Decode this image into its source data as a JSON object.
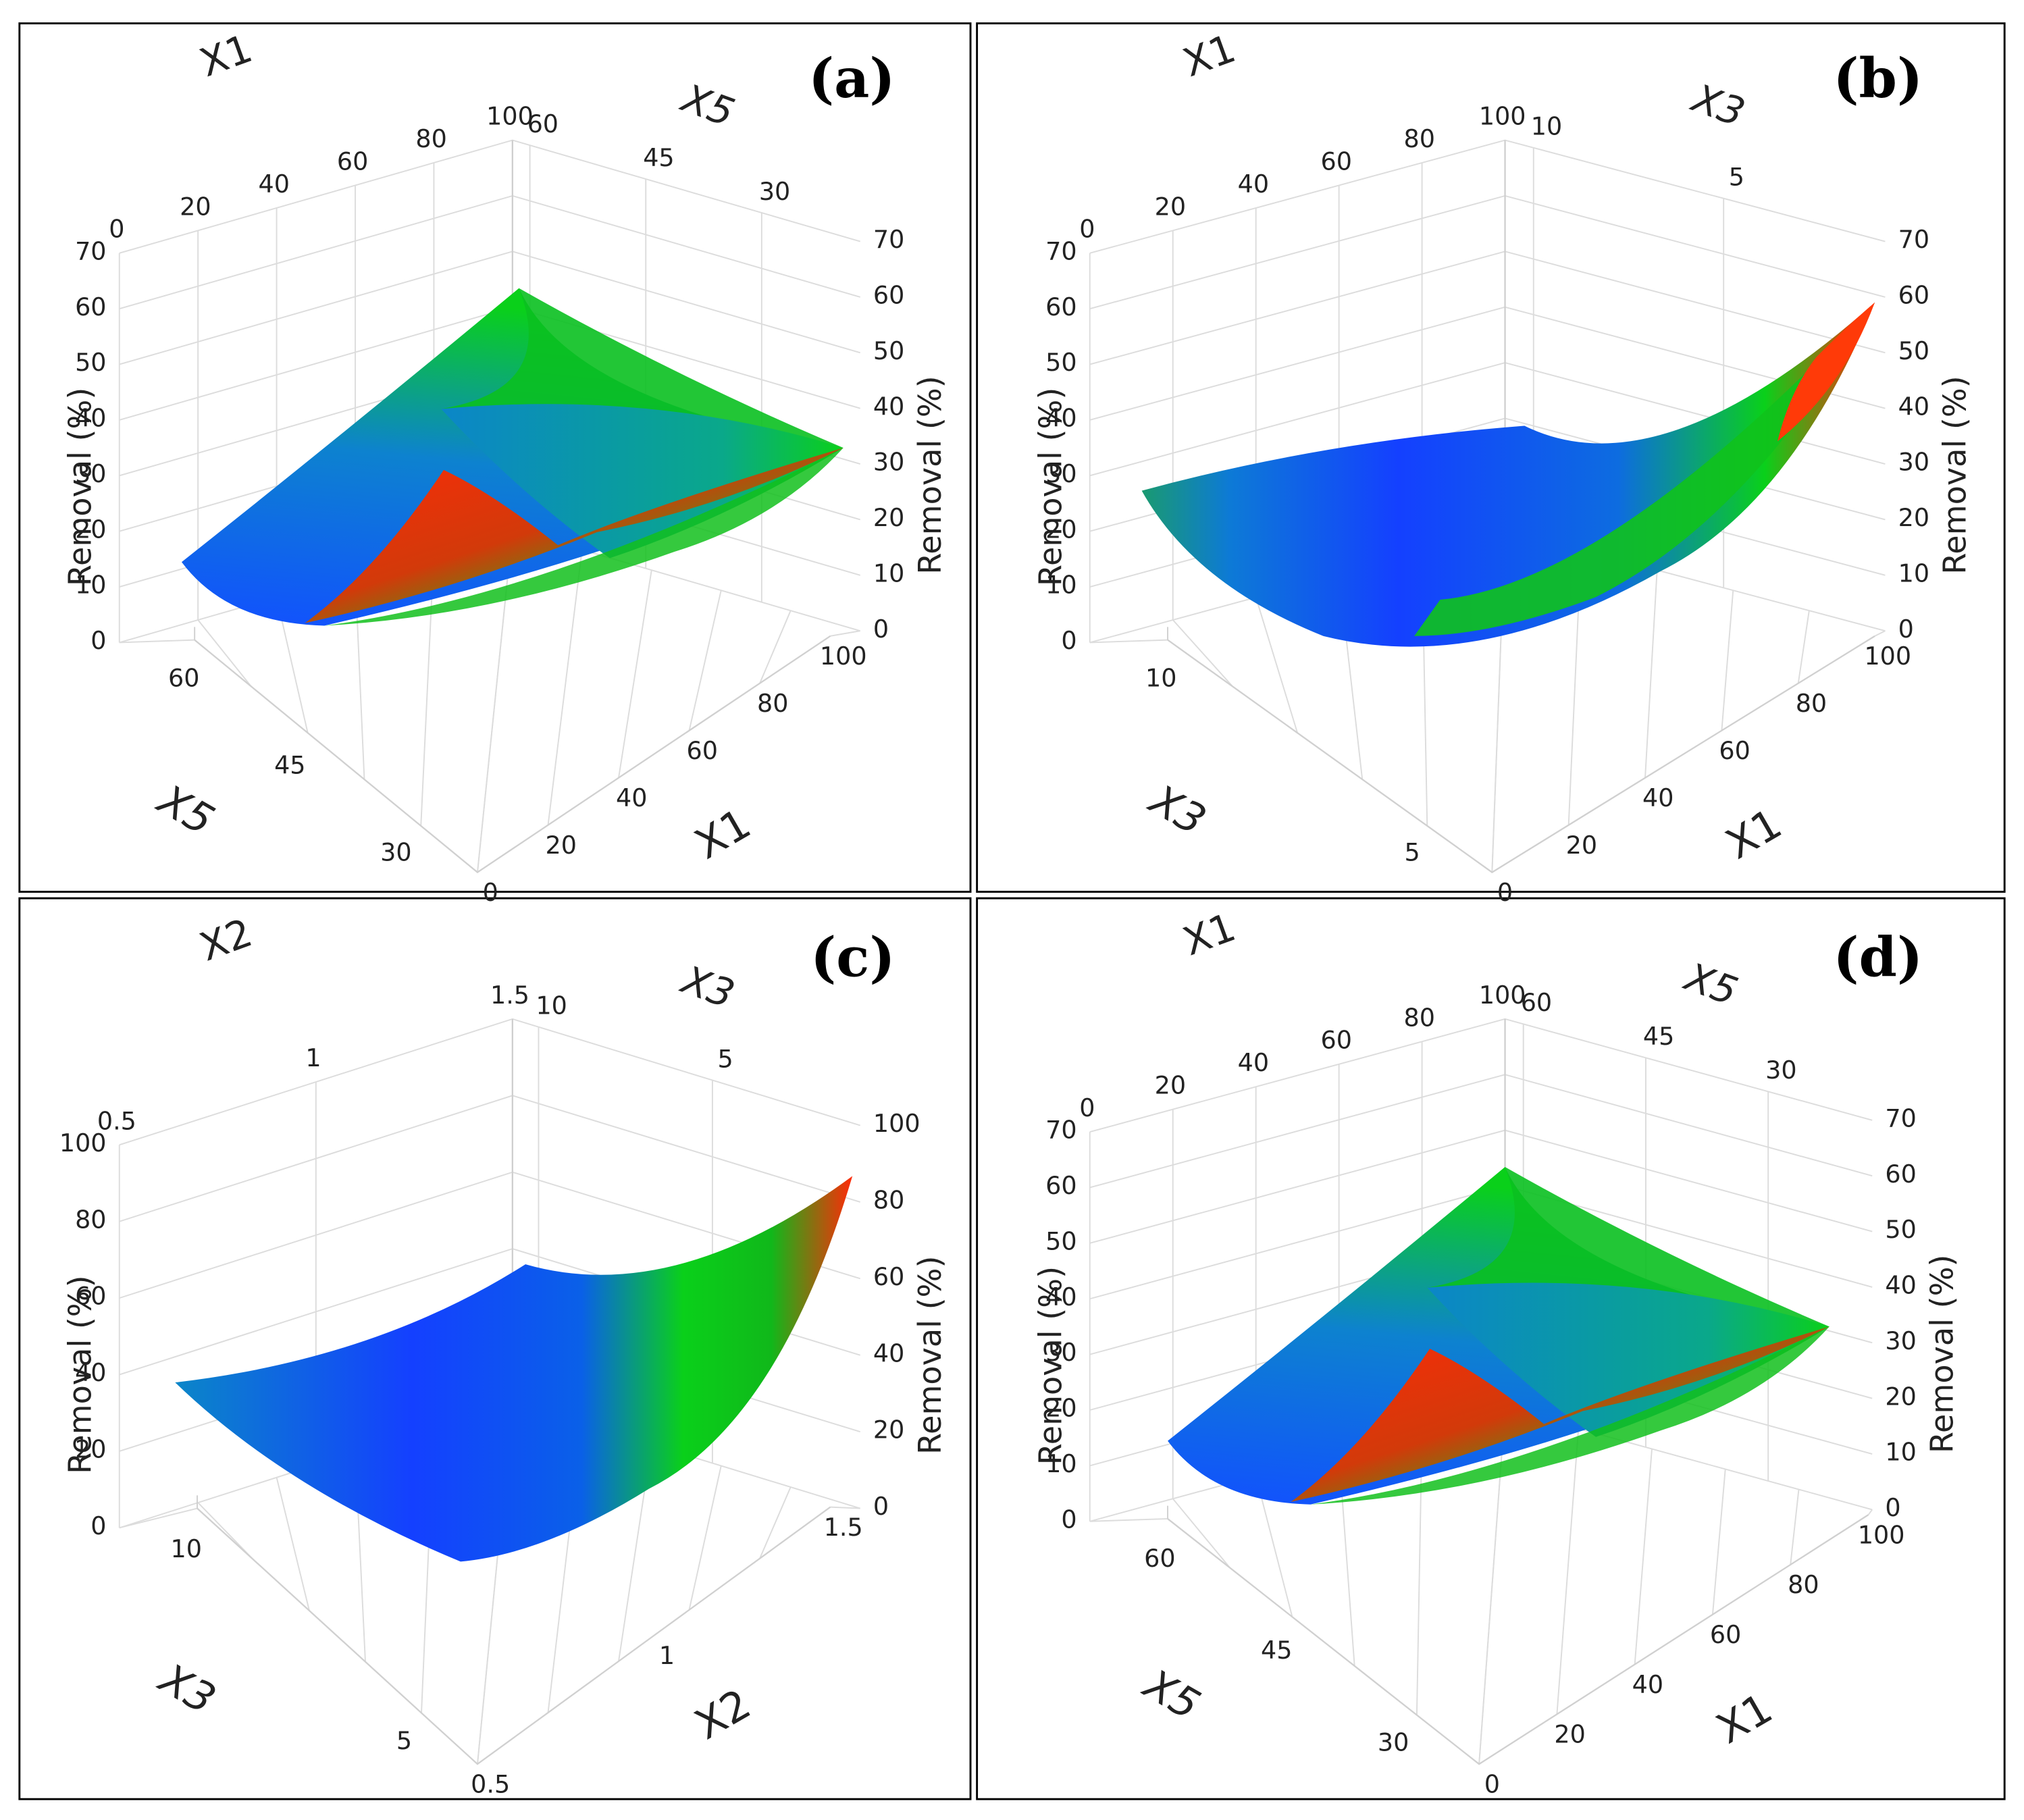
{
  "chart_data": [
    {
      "type": "surface3d",
      "label": "(a)",
      "front_x": {
        "title": "X1",
        "ticks": [
          "0",
          "20",
          "40",
          "60",
          "80",
          "100"
        ]
      },
      "front_y": {
        "title": "X5",
        "ticks": [
          "30",
          "45",
          "60"
        ]
      },
      "back_x": {
        "title": "X1",
        "ticks": [
          "0",
          "20",
          "40",
          "60",
          "80",
          "100"
        ]
      },
      "back_y": {
        "title": "X5",
        "ticks": [
          "60",
          "45",
          "30"
        ]
      },
      "z_left": {
        "title": "Removal (%)",
        "ticks": [
          "0",
          "10",
          "20",
          "30",
          "40",
          "50",
          "60",
          "70"
        ],
        "range": [
          0,
          70
        ]
      },
      "z_right": {
        "title": "Removal (%)",
        "ticks": [
          "0",
          "10",
          "20",
          "30",
          "40",
          "50",
          "60",
          "70"
        ],
        "range": [
          0,
          70
        ]
      },
      "corner_removal": {
        "x_min_y_min": 12,
        "x_min_y_max": 58,
        "x_max_y_min": 39,
        "x_max_y_max": 40,
        "min": 0
      },
      "highlight_peak": 37,
      "colorscale": [
        "#1440ff",
        "#0a7ad6",
        "#0ad01a",
        "#ff2a08"
      ]
    },
    {
      "type": "surface3d",
      "label": "(b)",
      "front_x": {
        "title": "X1",
        "ticks": [
          "0",
          "20",
          "40",
          "60",
          "80",
          "100"
        ]
      },
      "front_y": {
        "title": "X3",
        "ticks": [
          "5",
          "10"
        ]
      },
      "back_x": {
        "title": "X1",
        "ticks": [
          "0",
          "20",
          "40",
          "60",
          "80",
          "100"
        ]
      },
      "back_y": {
        "title": "X3",
        "ticks": [
          "10",
          "5"
        ]
      },
      "z_left": {
        "title": "Removal (%)",
        "ticks": [
          "0",
          "10",
          "20",
          "30",
          "40",
          "50",
          "60",
          "70"
        ],
        "range": [
          0,
          70
        ]
      },
      "z_right": {
        "title": "Removal (%)",
        "ticks": [
          "0",
          "10",
          "20",
          "30",
          "40",
          "50",
          "60",
          "70"
        ],
        "range": [
          0,
          70
        ]
      },
      "corner_removal": {
        "x_min_y_min": 28,
        "x_min_y_max": 35,
        "x_max_y_min": 62,
        "x_max_y_max": 5,
        "min": 0
      },
      "colorscale": [
        "#1440ff",
        "#0a7ad6",
        "#0ad01a",
        "#ff2a08"
      ]
    },
    {
      "type": "surface3d",
      "label": "(c)",
      "front_x": {
        "title": "X2",
        "ticks": [
          "0.5",
          "1",
          "1.5"
        ]
      },
      "front_y": {
        "title": "X3",
        "ticks": [
          "5",
          "10"
        ]
      },
      "back_x": {
        "title": "X2",
        "ticks": [
          "0.5",
          "1",
          "1.5"
        ]
      },
      "back_y": {
        "title": "X3",
        "ticks": [
          "10",
          "5"
        ]
      },
      "z_left": {
        "title": "Removal (%)",
        "ticks": [
          "0",
          "20",
          "40",
          "60",
          "80",
          "100"
        ],
        "range": [
          0,
          100
        ]
      },
      "z_right": {
        "title": "Removal (%)",
        "ticks": [
          "0",
          "20",
          "40",
          "60",
          "80",
          "100"
        ],
        "range": [
          0,
          100
        ]
      },
      "corner_removal": {
        "x_min_y_min": 28,
        "x_min_y_max": 40,
        "x_max_y_min": 88,
        "x_max_y_max": 10,
        "min": 0
      },
      "colorscale": [
        "#1440ff",
        "#0a7ad6",
        "#0ad01a",
        "#ff2a08"
      ]
    },
    {
      "type": "surface3d",
      "label": "(d)",
      "front_x": {
        "title": "X1",
        "ticks": [
          "0",
          "20",
          "40",
          "60",
          "80",
          "100"
        ]
      },
      "front_y": {
        "title": "X5",
        "ticks": [
          "30",
          "45",
          "60"
        ]
      },
      "back_x": {
        "title": "X1",
        "ticks": [
          "0",
          "20",
          "40",
          "60",
          "80",
          "100"
        ]
      },
      "back_y": {
        "title": "X5",
        "ticks": [
          "60",
          "45",
          "30"
        ]
      },
      "z_left": {
        "title": "Removal (%)",
        "ticks": [
          "0",
          "10",
          "20",
          "30",
          "40",
          "50",
          "60",
          "70"
        ],
        "range": [
          0,
          70
        ]
      },
      "z_right": {
        "title": "Removal (%)",
        "ticks": [
          "0",
          "10",
          "20",
          "30",
          "40",
          "50",
          "60",
          "70"
        ],
        "range": [
          0,
          70
        ]
      },
      "corner_removal": {
        "x_min_y_min": 12,
        "x_min_y_max": 58,
        "x_max_y_min": 39,
        "x_max_y_max": 40,
        "min": 0
      },
      "highlight_peak": 37,
      "colorscale": [
        "#1440ff",
        "#0a7ad6",
        "#0ad01a",
        "#ff2a08"
      ]
    }
  ]
}
